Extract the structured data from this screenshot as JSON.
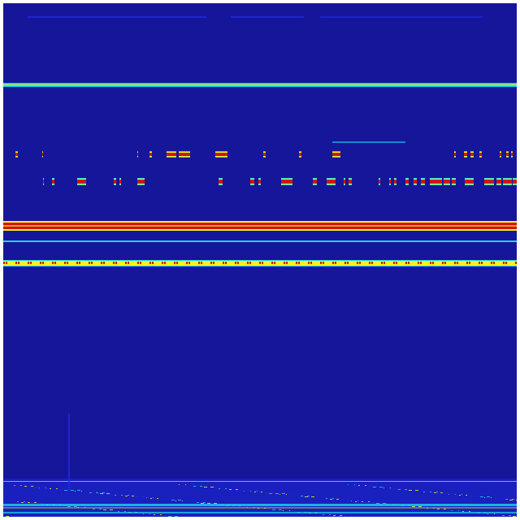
{
  "spectrogram": {
    "colormap": "jet",
    "colors": {
      "background": "#16169a",
      "low": "#1e2adf",
      "mid": "#19d7f0",
      "high_mid": "#f5f51a",
      "high": "#d21414",
      "frame": "#ffffff"
    }
  }
}
